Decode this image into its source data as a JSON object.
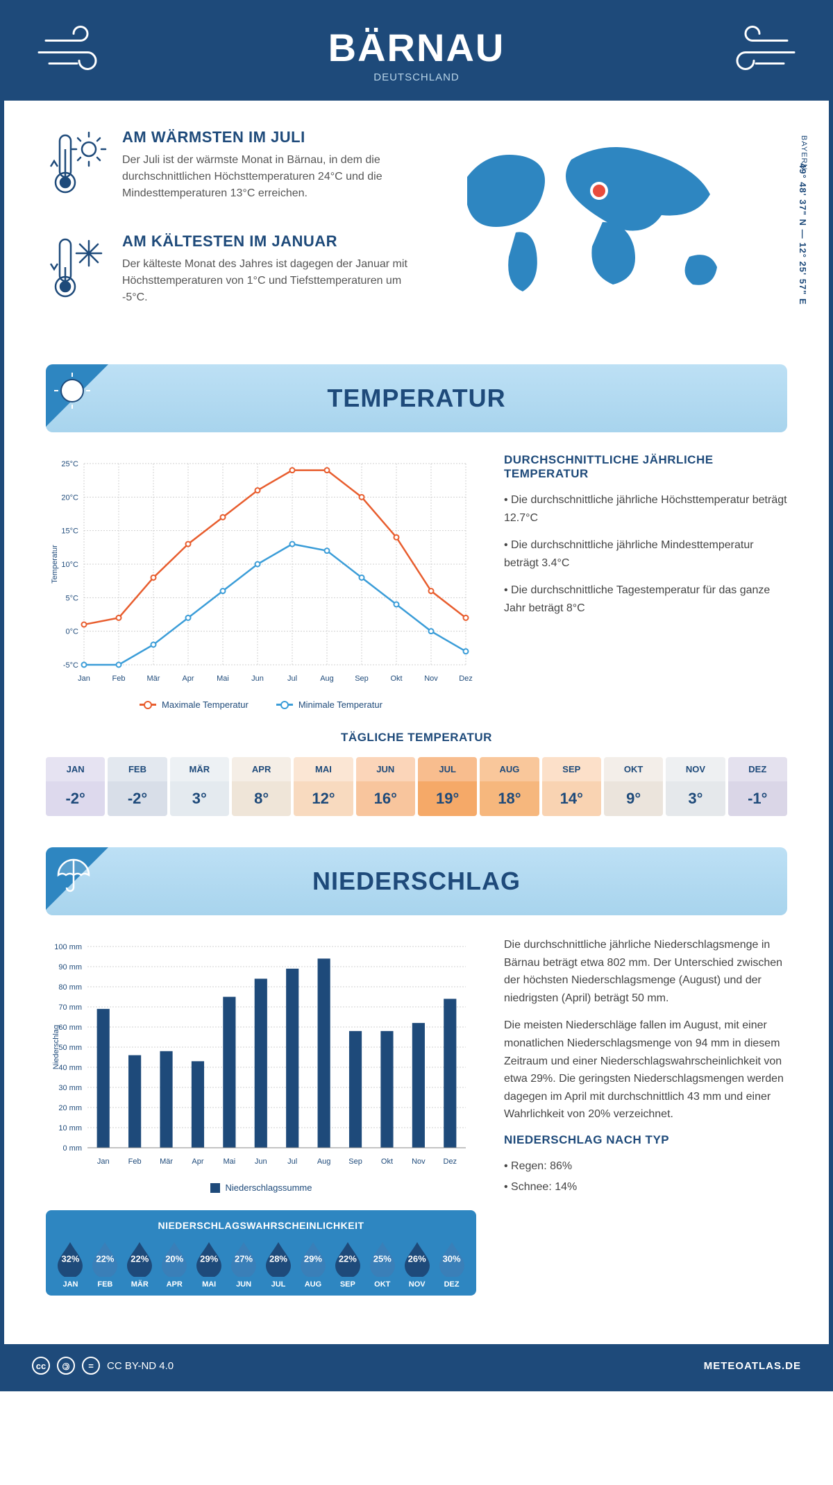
{
  "header": {
    "city": "BÄRNAU",
    "country": "DEUTSCHLAND"
  },
  "location": {
    "coords": "49° 48' 37\" N — 12° 25' 57\" E",
    "region": "BAYERN"
  },
  "warmest": {
    "title": "AM WÄRMSTEN IM JULI",
    "text": "Der Juli ist der wärmste Monat in Bärnau, in dem die durchschnittlichen Höchsttemperaturen 24°C und die Mindesttemperaturen 13°C erreichen."
  },
  "coldest": {
    "title": "AM KÄLTESTEN IM JANUAR",
    "text": "Der kälteste Monat des Jahres ist dagegen der Januar mit Höchsttemperaturen von 1°C und Tiefsttemperaturen um -5°C."
  },
  "temp_section": {
    "title": "TEMPERATUR",
    "chart": {
      "type": "line",
      "months": [
        "Jan",
        "Feb",
        "Mär",
        "Apr",
        "Mai",
        "Jun",
        "Jul",
        "Aug",
        "Sep",
        "Okt",
        "Nov",
        "Dez"
      ],
      "max_series": {
        "label": "Maximale Temperatur",
        "color": "#e85d2e",
        "values": [
          1,
          2,
          8,
          13,
          17,
          21,
          24,
          24,
          20,
          14,
          6,
          2
        ]
      },
      "min_series": {
        "label": "Minimale Temperatur",
        "color": "#3b9dd8",
        "values": [
          -5,
          -5,
          -2,
          2,
          6,
          10,
          13,
          12,
          8,
          4,
          0,
          -3
        ]
      },
      "ylim": [
        -5,
        25
      ],
      "ytick_step": 5,
      "yaxis_title": "Temperatur",
      "marker_radius": 3.5,
      "line_width": 2.5,
      "background": "#ffffff",
      "grid_color": "#d8d8d8"
    },
    "side": {
      "title": "DURCHSCHNITTLICHE JÄHRLICHE TEMPERATUR",
      "b1": "• Die durchschnittliche jährliche Höchsttemperatur beträgt 12.7°C",
      "b2": "• Die durchschnittliche jährliche Mindesttemperatur beträgt 3.4°C",
      "b3": "• Die durchschnittliche Tagestemperatur für das ganze Jahr beträgt 8°C"
    },
    "daily": {
      "title": "TÄGLICHE TEMPERATUR",
      "months": [
        "JAN",
        "FEB",
        "MÄR",
        "APR",
        "MAI",
        "JUN",
        "JUL",
        "AUG",
        "SEP",
        "OKT",
        "NOV",
        "DEZ"
      ],
      "values": [
        "-2°",
        "-2°",
        "3°",
        "8°",
        "12°",
        "16°",
        "19°",
        "18°",
        "14°",
        "9°",
        "3°",
        "-1°"
      ],
      "header_colors": [
        "#e6e3f2",
        "#e3e8ef",
        "#edf1f4",
        "#f5eee6",
        "#fbe6d4",
        "#fbd5b9",
        "#f8bd8e",
        "#f9c79b",
        "#fce0c9",
        "#f3eee9",
        "#eef0f2",
        "#e4e1ee"
      ],
      "value_colors": [
        "#ddd9ed",
        "#d8dee8",
        "#e4eaef",
        "#efe5d8",
        "#f8dabf",
        "#f8c59d",
        "#f5a968",
        "#f6b77d",
        "#f9d3b2",
        "#ebe4dc",
        "#e5e8eb",
        "#dad6e7"
      ]
    }
  },
  "precip_section": {
    "title": "NIEDERSCHLAG",
    "chart": {
      "type": "bar",
      "months": [
        "Jan",
        "Feb",
        "Mär",
        "Apr",
        "Mai",
        "Jun",
        "Jul",
        "Aug",
        "Sep",
        "Okt",
        "Nov",
        "Dez"
      ],
      "values": [
        69,
        46,
        48,
        43,
        75,
        84,
        89,
        94,
        58,
        58,
        62,
        74
      ],
      "bar_color": "#1e4a7a",
      "ylim": [
        0,
        100
      ],
      "ytick_step": 10,
      "yaxis_title": "Niederschlag",
      "bar_width": 0.4,
      "legend_label": "Niederschlagssumme",
      "grid_color": "#d8d8d8"
    },
    "text": {
      "p1": "Die durchschnittliche jährliche Niederschlagsmenge in Bärnau beträgt etwa 802 mm. Der Unterschied zwischen der höchsten Niederschlagsmenge (August) und der niedrigsten (April) beträgt 50 mm.",
      "p2": "Die meisten Niederschläge fallen im August, mit einer monatlichen Niederschlagsmenge von 94 mm in diesem Zeitraum und einer Niederschlagswahrscheinlichkeit von etwa 29%. Die geringsten Niederschlagsmengen werden dagegen im April mit durchschnittlich 43 mm und einer Wahrlichkeit von 20% verzeichnet.",
      "type_title": "NIEDERSCHLAG NACH TYP",
      "type_b1": "• Regen: 86%",
      "type_b2": "• Schnee: 14%"
    },
    "prob": {
      "title": "NIEDERSCHLAGSWAHRSCHEINLICHKEIT",
      "months": [
        "JAN",
        "FEB",
        "MÄR",
        "APR",
        "MAI",
        "JUN",
        "JUL",
        "AUG",
        "SEP",
        "OKT",
        "NOV",
        "DEZ"
      ],
      "values": [
        "32%",
        "22%",
        "22%",
        "20%",
        "29%",
        "27%",
        "28%",
        "29%",
        "22%",
        "25%",
        "26%",
        "30%"
      ],
      "drop_color": "#1e4a7a",
      "drop_color_alt": "#3a7fb8"
    }
  },
  "footer": {
    "license": "CC BY-ND 4.0",
    "site": "METEOATLAS.DE"
  }
}
